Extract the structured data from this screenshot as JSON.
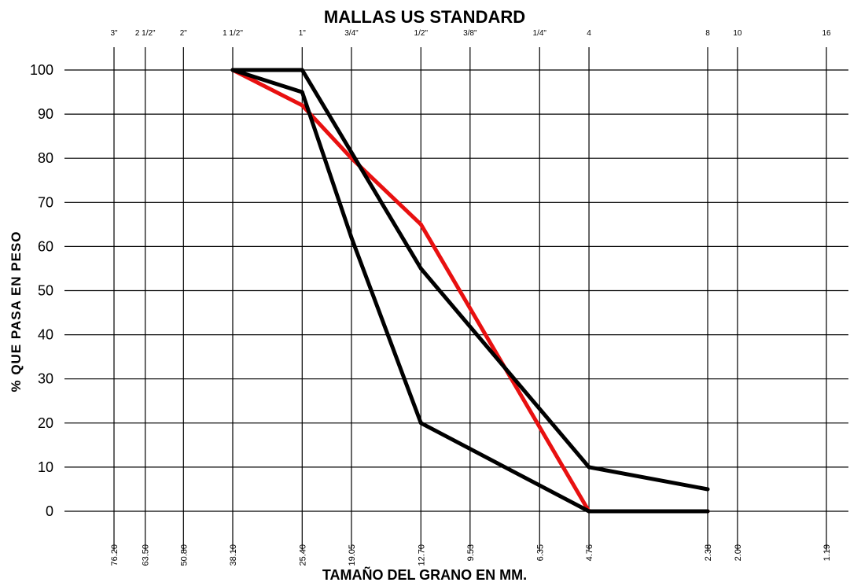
{
  "chart_data": {
    "type": "line",
    "title": "MALLAS US STANDARD",
    "xlabel": "TAMAÑO DEL GRANO EN MM.",
    "ylabel": "% QUE PASA EN PESO",
    "x_scale": "log",
    "x_reversed": true,
    "ylim": [
      0,
      100
    ],
    "yticks": [
      0,
      10,
      20,
      30,
      40,
      50,
      60,
      70,
      80,
      90,
      100
    ],
    "grid": true,
    "sieves": [
      {
        "name": "3\"",
        "mm": 76.2,
        "mm_label": "76.20"
      },
      {
        "name": "2 1/2\"",
        "mm": 63.5,
        "mm_label": "63.50"
      },
      {
        "name": "2\"",
        "mm": 50.8,
        "mm_label": "50.80"
      },
      {
        "name": "1 1/2\"",
        "mm": 38.1,
        "mm_label": "38.10"
      },
      {
        "name": "1\"",
        "mm": 25.4,
        "mm_label": "25.40"
      },
      {
        "name": "3/4\"",
        "mm": 19.05,
        "mm_label": "19.05"
      },
      {
        "name": "1/2\"",
        "mm": 12.7,
        "mm_label": "12.70"
      },
      {
        "name": "3/8\"",
        "mm": 9.53,
        "mm_label": "9.53"
      },
      {
        "name": "1/4\"",
        "mm": 6.35,
        "mm_label": "6.35"
      },
      {
        "name": "4",
        "mm": 4.76,
        "mm_label": "4.76"
      },
      {
        "name": "8",
        "mm": 2.38,
        "mm_label": "2.38"
      },
      {
        "name": "10",
        "mm": 2.0,
        "mm_label": "2.00"
      },
      {
        "name": "16",
        "mm": 1.19,
        "mm_label": "1.19"
      }
    ],
    "series": [
      {
        "color": "#e81010",
        "x": [
          38.1,
          25.4,
          19.05,
          12.7,
          4.76,
          2.38
        ],
        "y": [
          100,
          92,
          80,
          65,
          0,
          0
        ]
      },
      {
        "color": "#000000",
        "x": [
          38.1,
          25.4,
          12.7,
          4.76,
          2.38
        ],
        "y": [
          100,
          100,
          55,
          10,
          5
        ]
      },
      {
        "color": "#000000",
        "x": [
          38.1,
          25.4,
          19.05,
          12.7,
          4.76,
          2.38
        ],
        "y": [
          100,
          95,
          62,
          20,
          0,
          0
        ]
      }
    ]
  }
}
